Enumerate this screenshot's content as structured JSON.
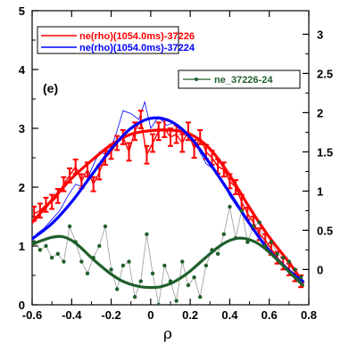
{
  "chart_data": {
    "type": "line",
    "panel_label": "(e)",
    "xlabel": "ρ",
    "xlim": [
      -0.6,
      0.8
    ],
    "ylim_left": [
      0,
      5
    ],
    "ylim_right": [
      -0.45,
      3.3
    ],
    "x_ticks": [
      "-0.6",
      "-0.4",
      "-0.2",
      "0",
      "0.2",
      "0.4",
      "0.6",
      "0.8"
    ],
    "x_tick_values": [
      -0.6,
      -0.4,
      -0.2,
      0,
      0.2,
      0.4,
      0.6,
      0.8
    ],
    "y_left_ticks": [
      "0",
      "1",
      "2",
      "3",
      "4",
      "5"
    ],
    "y_left_tick_values": [
      0,
      1,
      2,
      3,
      4,
      5
    ],
    "y_right_ticks": [
      "0",
      "0.5",
      "1",
      "1.5",
      "2",
      "2.5",
      "3"
    ],
    "y_right_tick_values": [
      0,
      0.5,
      1,
      1.5,
      2,
      2.5,
      3
    ],
    "legend_left_location": "top-left",
    "legend_right_location": "top-right",
    "series": [
      {
        "name": "ne(rho)(1054.0ms)-37226",
        "color": "#ff0000",
        "axis": "left",
        "style": "fit-line",
        "x": [
          -0.6,
          -0.5,
          -0.4,
          -0.3,
          -0.2,
          -0.1,
          0,
          0.1,
          0.2,
          0.3,
          0.4,
          0.5,
          0.6,
          0.7,
          0.77
        ],
        "y": [
          1.4,
          1.78,
          2.15,
          2.45,
          2.72,
          2.9,
          2.96,
          2.97,
          2.9,
          2.65,
          2.2,
          1.65,
          1.15,
          0.72,
          0.38
        ]
      },
      {
        "name": "ne(rho)(1054.0ms)-37226 data",
        "color": "#ff0000",
        "axis": "left",
        "style": "errorbar",
        "x": [
          -0.59,
          -0.56,
          -0.53,
          -0.5,
          -0.47,
          -0.44,
          -0.41,
          -0.38,
          -0.35,
          -0.32,
          -0.29,
          -0.26,
          -0.23,
          -0.2,
          -0.17,
          -0.14,
          -0.11,
          -0.08,
          -0.05,
          -0.02,
          0.01,
          0.04,
          0.07,
          0.1,
          0.13,
          0.16,
          0.19,
          0.22,
          0.25,
          0.28,
          0.31,
          0.34,
          0.37,
          0.4,
          0.43,
          0.46,
          0.49,
          0.52,
          0.55,
          0.58,
          0.61,
          0.64,
          0.67,
          0.7,
          0.73,
          0.76
        ],
        "y": [
          1.55,
          1.6,
          1.7,
          1.75,
          1.85,
          2.05,
          2.2,
          2.35,
          2.1,
          2.3,
          2.05,
          2.25,
          2.5,
          2.6,
          2.75,
          2.85,
          2.6,
          2.95,
          3.15,
          2.55,
          2.75,
          2.95,
          3.0,
          2.85,
          2.9,
          2.75,
          2.95,
          2.65,
          2.85,
          2.6,
          2.5,
          2.35,
          2.3,
          2.1,
          2.0,
          1.75,
          1.55,
          1.4,
          1.2,
          1.1,
          0.95,
          0.8,
          0.7,
          0.6,
          0.5,
          0.4
        ],
        "error": [
          0.12,
          0.12,
          0.12,
          0.12,
          0.12,
          0.12,
          0.12,
          0.12,
          0.12,
          0.12,
          0.12,
          0.12,
          0.12,
          0.12,
          0.12,
          0.12,
          0.15,
          0.15,
          0.15,
          0.15,
          0.15,
          0.15,
          0.15,
          0.15,
          0.15,
          0.15,
          0.15,
          0.15,
          0.12,
          0.12,
          0.12,
          0.12,
          0.12,
          0.12,
          0.12,
          0.12,
          0.1,
          0.1,
          0.1,
          0.1,
          0.1,
          0.1,
          0.1,
          0.1,
          0.1,
          0.1
        ]
      },
      {
        "name": "ne(rho)(1054.0ms)-37224",
        "color": "#0000ff",
        "axis": "left",
        "style": "fit-line",
        "x": [
          -0.6,
          -0.5,
          -0.4,
          -0.3,
          -0.2,
          -0.1,
          0,
          0.1,
          0.2,
          0.3,
          0.4,
          0.5,
          0.6,
          0.7,
          0.77
        ],
        "y": [
          1.12,
          1.38,
          1.75,
          2.2,
          2.65,
          3.0,
          3.17,
          3.12,
          2.85,
          2.4,
          1.9,
          1.38,
          0.92,
          0.58,
          0.4
        ]
      },
      {
        "name": "ne(rho)(1054.0ms)-37224 data",
        "color": "#0000ff",
        "axis": "left",
        "style": "thin-line",
        "x": [
          -0.58,
          -0.54,
          -0.5,
          -0.46,
          -0.42,
          -0.38,
          -0.34,
          -0.3,
          -0.26,
          -0.22,
          -0.18,
          -0.14,
          -0.1,
          -0.06,
          -0.03,
          0,
          0.04,
          0.08,
          0.12,
          0.16,
          0.2,
          0.24,
          0.28,
          0.32,
          0.36,
          0.4,
          0.44,
          0.48,
          0.52,
          0.56,
          0.6,
          0.64,
          0.68,
          0.72,
          0.76
        ],
        "y": [
          1.2,
          1.3,
          1.45,
          1.6,
          1.85,
          2.05,
          2.0,
          2.3,
          2.6,
          2.55,
          2.85,
          3.3,
          3.25,
          3.15,
          3.45,
          3.0,
          3.2,
          3.05,
          3.1,
          2.9,
          2.85,
          2.65,
          2.4,
          2.3,
          2.1,
          1.85,
          1.65,
          1.5,
          1.3,
          1.1,
          0.95,
          0.8,
          0.65,
          0.55,
          0.45
        ]
      },
      {
        "name": "ne_37226-24",
        "color": "#1f5f2a",
        "axis": "right",
        "style": "fit-line",
        "x": [
          -0.6,
          -0.55,
          -0.5,
          -0.45,
          -0.4,
          -0.35,
          -0.3,
          -0.25,
          -0.2,
          -0.15,
          -0.1,
          -0.05,
          0,
          0.05,
          0.1,
          0.15,
          0.2,
          0.25,
          0.3,
          0.35,
          0.4,
          0.45,
          0.5,
          0.55,
          0.6,
          0.65,
          0.7,
          0.75,
          0.77
        ],
        "y": [
          0.32,
          0.37,
          0.41,
          0.42,
          0.37,
          0.27,
          0.15,
          0.04,
          -0.06,
          -0.14,
          -0.19,
          -0.22,
          -0.23,
          -0.22,
          -0.18,
          -0.11,
          -0.02,
          0.09,
          0.2,
          0.3,
          0.37,
          0.4,
          0.38,
          0.32,
          0.22,
          0.1,
          -0.03,
          -0.15,
          -0.2
        ]
      },
      {
        "name": "ne_37226-24 data",
        "color": "#1f5f2a",
        "axis": "right",
        "style": "dots",
        "x": [
          -0.59,
          -0.56,
          -0.53,
          -0.5,
          -0.47,
          -0.44,
          -0.41,
          -0.38,
          -0.35,
          -0.32,
          -0.29,
          -0.26,
          -0.23,
          -0.2,
          -0.17,
          -0.14,
          -0.11,
          -0.08,
          -0.05,
          -0.02,
          0.01,
          0.04,
          0.07,
          0.1,
          0.13,
          0.16,
          0.19,
          0.22,
          0.25,
          0.28,
          0.31,
          0.34,
          0.37,
          0.4,
          0.43,
          0.46,
          0.49,
          0.52,
          0.55,
          0.58,
          0.61,
          0.64,
          0.67,
          0.7,
          0.73,
          0.76
        ],
        "y": [
          0.35,
          0.25,
          0.3,
          0.15,
          0.2,
          0.1,
          0.55,
          0.35,
          0.1,
          -0.05,
          0.15,
          0.3,
          0.55,
          0.0,
          -0.25,
          0.05,
          0.1,
          -0.35,
          -0.15,
          0.45,
          -0.05,
          -0.45,
          0.05,
          -0.15,
          -0.4,
          0.1,
          -0.2,
          -0.1,
          -0.35,
          0.05,
          0.25,
          0.2,
          0.45,
          0.8,
          0.4,
          0.75,
          0.35,
          0.55,
          0.6,
          0.3,
          0.35,
          0.2,
          0.15,
          0.1,
          0.0,
          -0.1
        ]
      },
      {
        "name": "ne_37226-24 thin",
        "color": "#9a9a9a",
        "axis": "right",
        "style": "thin-line",
        "x": [
          -0.59,
          -0.56,
          -0.53,
          -0.5,
          -0.47,
          -0.44,
          -0.41,
          -0.38,
          -0.35,
          -0.32,
          -0.29,
          -0.26,
          -0.23,
          -0.2,
          -0.17,
          -0.14,
          -0.11,
          -0.08,
          -0.05,
          -0.02,
          0.01,
          0.04,
          0.07,
          0.1,
          0.13,
          0.16,
          0.19,
          0.22,
          0.25,
          0.28,
          0.31,
          0.34,
          0.37,
          0.4,
          0.43,
          0.46,
          0.49,
          0.52,
          0.55,
          0.58,
          0.61,
          0.64,
          0.67,
          0.7,
          0.73,
          0.76
        ],
        "y": [
          0.35,
          0.25,
          0.3,
          0.15,
          0.2,
          0.1,
          0.55,
          0.35,
          0.1,
          -0.05,
          0.15,
          0.3,
          0.55,
          0.0,
          -0.25,
          0.05,
          0.1,
          -0.35,
          -0.15,
          0.45,
          -0.05,
          -0.45,
          0.05,
          -0.15,
          -0.4,
          0.1,
          -0.2,
          -0.1,
          -0.35,
          0.05,
          0.25,
          0.2,
          0.45,
          0.8,
          0.4,
          0.75,
          0.35,
          0.55,
          0.6,
          0.3,
          0.35,
          0.2,
          0.15,
          0.1,
          0.0,
          -0.1
        ]
      }
    ],
    "legend_left": [
      {
        "label": "ne(rho)(1054.0ms)-37226",
        "color": "#ff0000"
      },
      {
        "label": "ne(rho)(1054.0ms)-37224",
        "color": "#0000ff"
      }
    ],
    "legend_right": [
      {
        "label": "ne_37226-24",
        "color": "#1f5f2a"
      }
    ]
  }
}
